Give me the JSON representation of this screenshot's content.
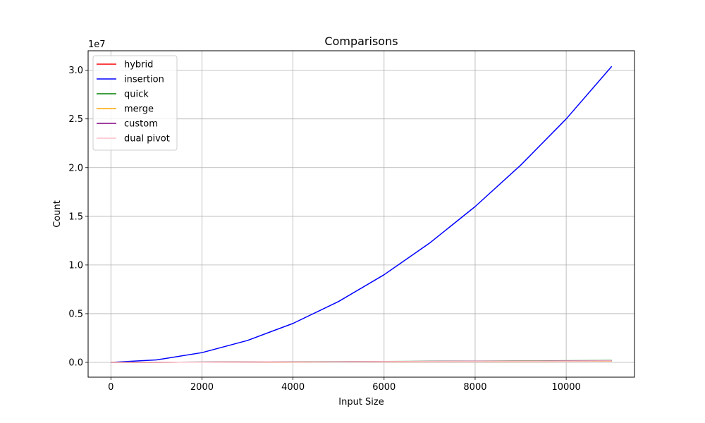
{
  "chart_data": {
    "type": "line",
    "title": "Comparisons",
    "xlabel": "Input Size",
    "ylabel": "Count",
    "y_offset_text": "1e7",
    "y_scale_factor": 10000000,
    "xlim": [
      -500,
      11500
    ],
    "ylim": [
      -1520000,
      32000000
    ],
    "xticks": [
      0,
      2000,
      4000,
      6000,
      8000,
      10000
    ],
    "xtick_labels": [
      "0",
      "2000",
      "4000",
      "6000",
      "8000",
      "10000"
    ],
    "yticks": [
      0,
      5000000,
      10000000,
      15000000,
      20000000,
      25000000,
      30000000
    ],
    "ytick_labels": [
      "0.0",
      "0.5",
      "1.0",
      "1.5",
      "2.0",
      "2.5",
      "3.0"
    ],
    "grid": true,
    "legend_position": "top-left",
    "x": [
      0,
      1000,
      2000,
      3000,
      4000,
      5000,
      6000,
      7000,
      8000,
      9000,
      10000,
      11000
    ],
    "series": [
      {
        "name": "hybrid",
        "color": "#ff0000",
        "values": [
          0,
          9000,
          20000,
          32000,
          45000,
          58000,
          72000,
          86000,
          100000,
          115000,
          130000,
          145000
        ]
      },
      {
        "name": "insertion",
        "color": "#0000ff",
        "values": [
          0,
          250000,
          1000000,
          2250000,
          4000000,
          6250000,
          9000000,
          12250000,
          16000000,
          20250000,
          25000000,
          30400000
        ]
      },
      {
        "name": "quick",
        "color": "#008000",
        "values": [
          0,
          12000,
          27000,
          43000,
          60000,
          77000,
          95000,
          113000,
          131000,
          150000,
          169000,
          188000
        ]
      },
      {
        "name": "merge",
        "color": "#ffa500",
        "values": [
          0,
          9000,
          20000,
          31000,
          43000,
          55000,
          68000,
          81000,
          94000,
          107000,
          121000,
          135000
        ]
      },
      {
        "name": "custom",
        "color": "#800080",
        "values": [
          0,
          11000,
          24000,
          38000,
          53000,
          68000,
          84000,
          100000,
          116000,
          133000,
          150000,
          167000
        ]
      },
      {
        "name": "dual pivot",
        "color": "#ffc0cb",
        "values": [
          0,
          10000,
          22000,
          35000,
          49000,
          63000,
          78000,
          93000,
          108000,
          123000,
          139000,
          155000
        ]
      }
    ]
  }
}
